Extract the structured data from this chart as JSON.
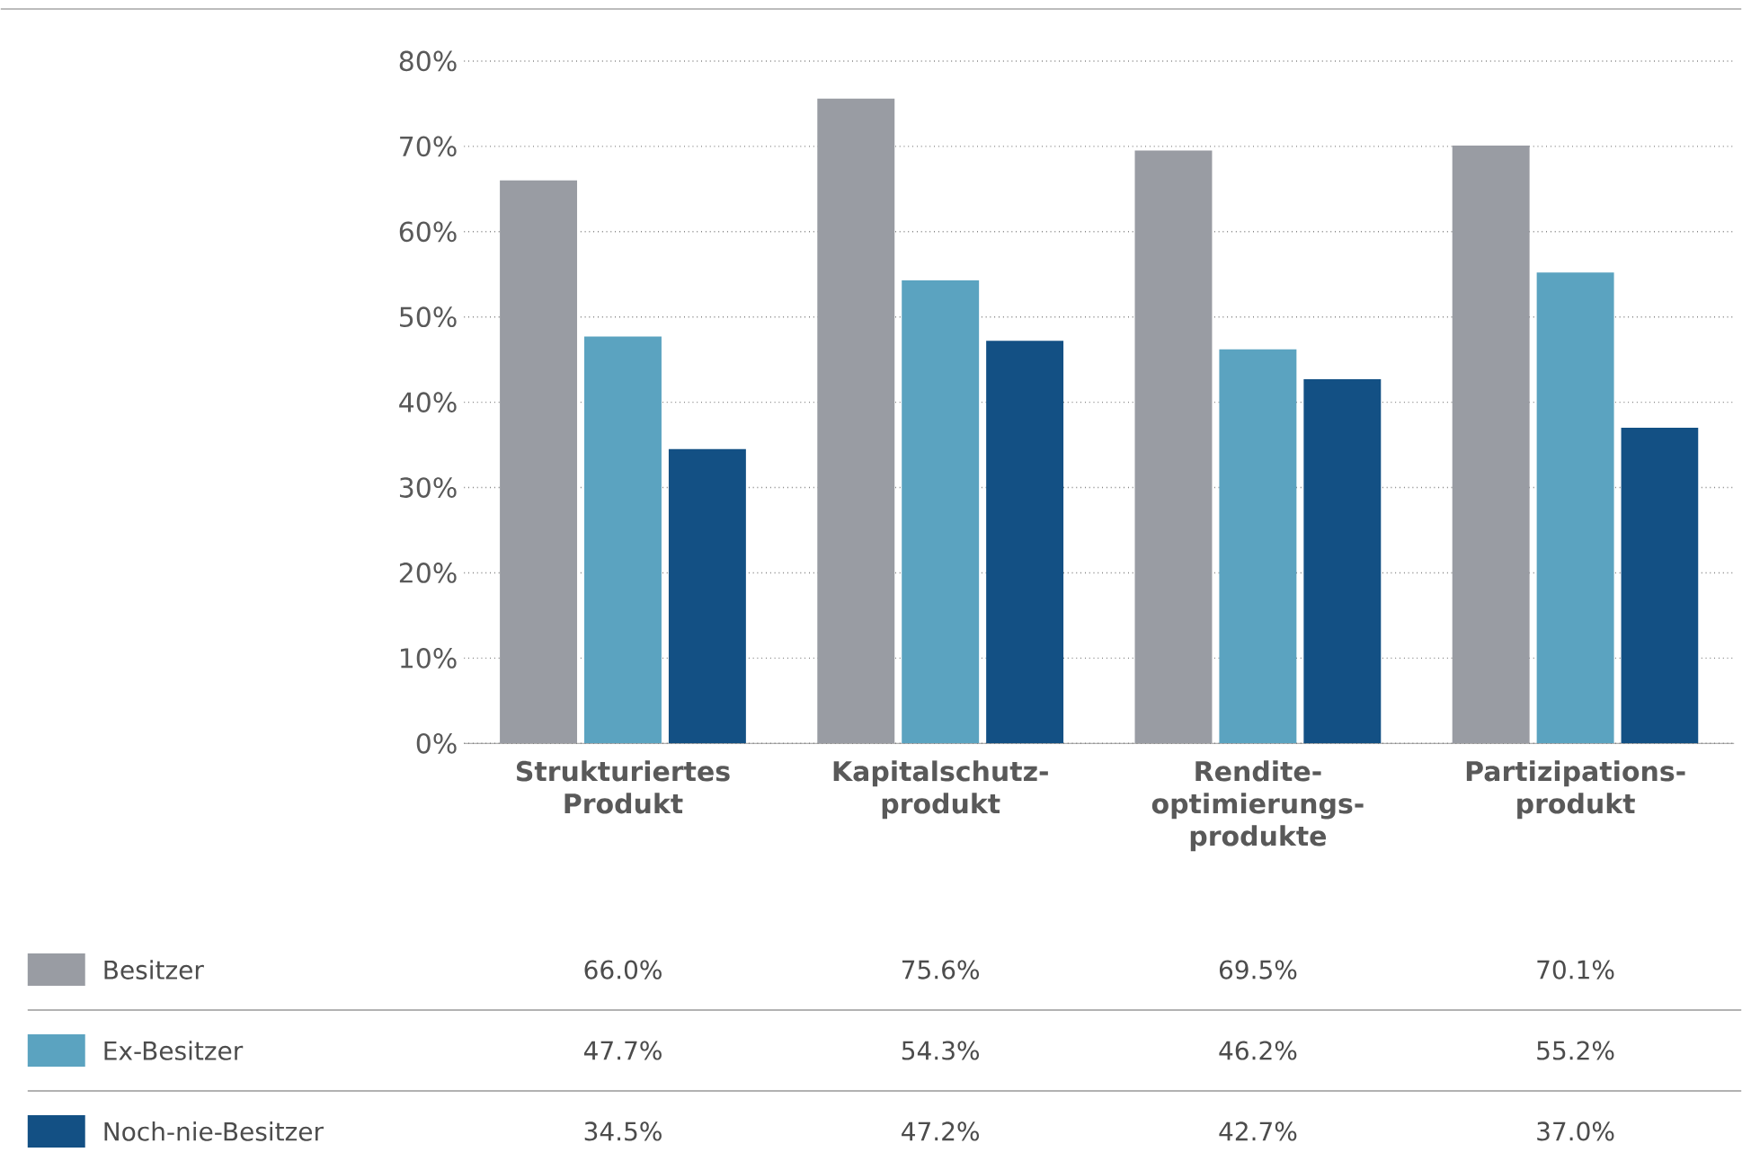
{
  "chart_data": {
    "type": "bar",
    "categories": [
      "Strukturiertes Produkt",
      "Kapitalschutz-produkt",
      "Rendite-optimierungs-produkte",
      "Partizipations-produkt"
    ],
    "series": [
      {
        "name": "Besitzer",
        "color": "#999ca3",
        "values": [
          66.0,
          75.6,
          69.5,
          70.1
        ],
        "value_labels": [
          "66.0%",
          "75.6%",
          "69.5%",
          "70.1%"
        ]
      },
      {
        "name": "Ex-Besitzer",
        "color": "#5ba3c0",
        "values": [
          47.7,
          54.3,
          46.2,
          55.2
        ],
        "value_labels": [
          "47.7%",
          "54.3%",
          "46.2%",
          "55.2%"
        ]
      },
      {
        "name": "Noch-nie-Besitzer",
        "color": "#135084",
        "values": [
          34.5,
          47.2,
          42.7,
          37.0
        ],
        "value_labels": [
          "34.5%",
          "47.2%",
          "42.7%",
          "37.0%"
        ]
      }
    ],
    "ylim": [
      0,
      80
    ],
    "yticks": [
      {
        "value": 0,
        "label": "0%"
      },
      {
        "value": 10,
        "label": "10%"
      },
      {
        "value": 20,
        "label": "20%"
      },
      {
        "value": 30,
        "label": "30%"
      },
      {
        "value": 40,
        "label": "40%"
      },
      {
        "value": 50,
        "label": "50%"
      },
      {
        "value": 60,
        "label": "60%"
      },
      {
        "value": 70,
        "label": "70%"
      },
      {
        "value": 80,
        "label": "80%"
      }
    ],
    "grid": "y",
    "legend": "bottom"
  }
}
